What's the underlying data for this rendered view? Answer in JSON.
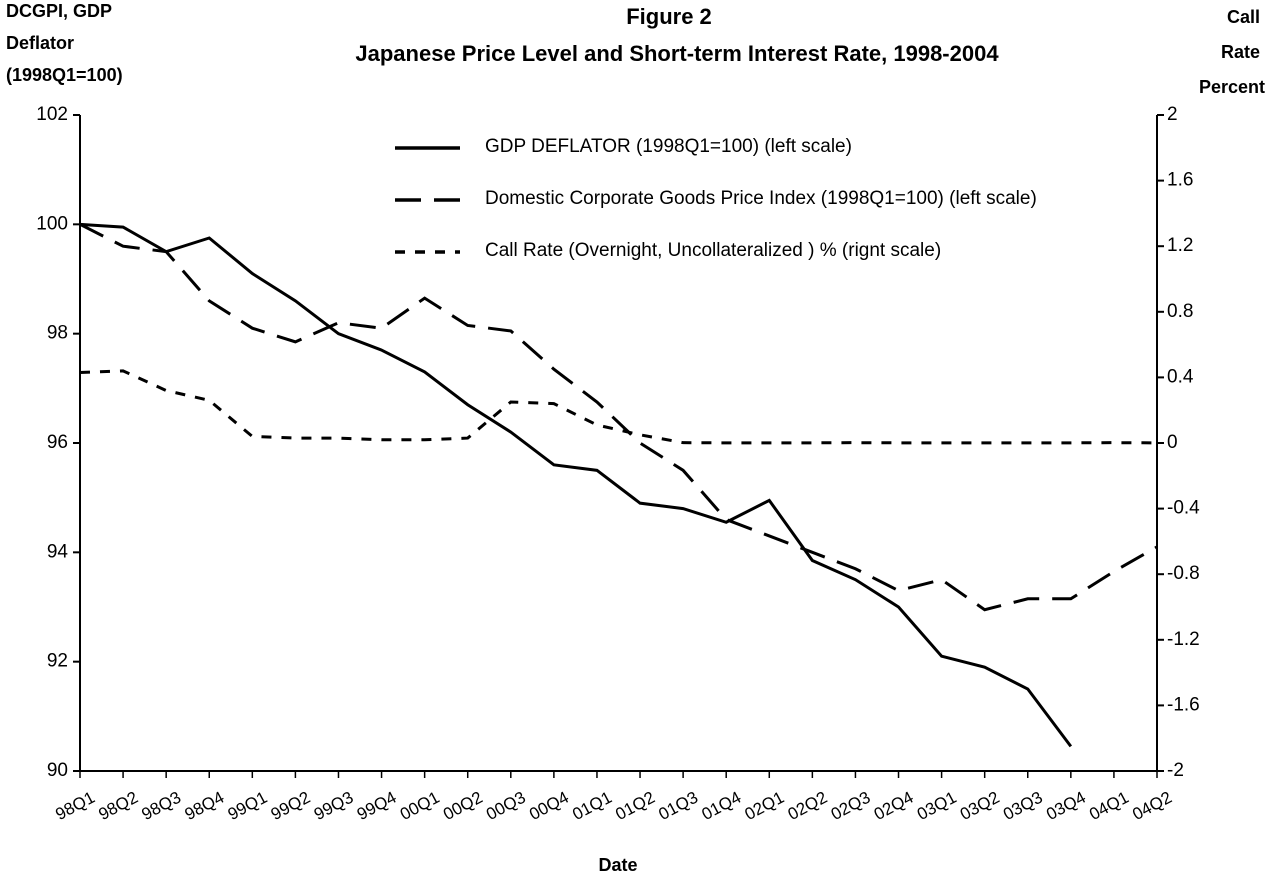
{
  "chart_data": {
    "type": "line",
    "title": "Figure 2",
    "subtitle": "Japanese Price Level and Short-term Interest Rate, 1998-2004",
    "y_label": [
      "DCGPI,  GDP",
      "Deflator",
      "(1998Q1=100)"
    ],
    "y2_label": [
      "Call",
      "Rate",
      "Percent"
    ],
    "x_label": "Date",
    "categories": [
      "98Q1",
      "98Q2",
      "98Q3",
      "98Q4",
      "99Q1",
      "99Q2",
      "99Q3",
      "99Q4",
      "00Q1",
      "00Q2",
      "00Q3",
      "00Q4",
      "01Q1",
      "01Q2",
      "01Q3",
      "01Q4",
      "02Q1",
      "02Q2",
      "02Q3",
      "02Q4",
      "03Q1",
      "03Q2",
      "03Q3",
      "03Q4",
      "04Q1",
      "04Q2"
    ],
    "series": [
      {
        "name": "GDP DEFLATOR (1998Q1=100) (left scale)",
        "color": "#000000",
        "dash": "solid",
        "values": [
          100.0,
          99.95,
          99.5,
          99.75,
          99.1,
          98.6,
          98.0,
          97.7,
          97.3,
          96.7,
          96.2,
          95.6,
          95.5,
          94.9,
          94.8,
          94.55,
          94.95,
          93.85,
          93.5,
          93.0,
          92.1,
          91.9,
          91.5,
          90.45,
          null,
          null
        ]
      },
      {
        "name": "Domestic Corporate Goods Price Index (1998Q1=100) (left scale)",
        "color": "#000000",
        "dash": "long",
        "values": [
          100.0,
          99.6,
          99.5,
          98.6,
          98.1,
          97.85,
          98.2,
          98.1,
          98.65,
          98.15,
          98.05,
          97.35,
          96.75,
          96.0,
          95.5,
          94.6,
          94.3,
          94.0,
          93.7,
          93.3,
          93.5,
          92.95,
          93.15,
          93.15,
          93.65,
          94.1
        ]
      },
      {
        "name": "Call Rate (Overnight, Uncollateralized ) % (rignt scale)",
        "color": "#000000",
        "dash": "short",
        "axis": "y2",
        "values": [
          0.43,
          0.44,
          0.32,
          0.26,
          0.04,
          0.03,
          0.03,
          0.02,
          0.02,
          0.03,
          0.25,
          0.24,
          0.11,
          0.05,
          0.002,
          0.001,
          0.001,
          0.001,
          0.002,
          0.001,
          0.001,
          0.001,
          0.001,
          0.001,
          0.002,
          0.001
        ]
      }
    ],
    "ylim": [
      90,
      102
    ],
    "yticks": [
      90,
      92,
      94,
      96,
      98,
      100,
      102
    ],
    "y2lim": [
      -2,
      2
    ],
    "y2ticks": [
      -2,
      -1.6,
      -1.2,
      -0.8,
      -0.4,
      0,
      0.4,
      0.8,
      1.2,
      1.6,
      2
    ],
    "grid": false
  }
}
